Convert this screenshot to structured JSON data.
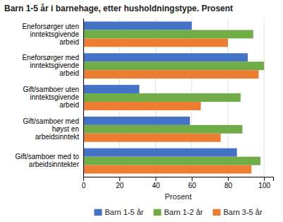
{
  "chart_data": {
    "type": "bar",
    "orientation": "horizontal",
    "title": "Barn 1-5 år i barnehage, etter husholdningstype. Prosent",
    "categories": [
      "Eneforsørger uten\ninntektsgivende\narbeid",
      "Eneforsørger med\ninntektsgivende\narbeid",
      "Gift/samboer uten\ninntektsgivende\narbeid",
      "Gift/samboer med\nhøyst en\narbeidsinntekt",
      "Gift/samboer med to\narbeidsinntekter"
    ],
    "series": [
      {
        "name": "Barn 1-5 år",
        "color": "#4472C4",
        "values": [
          60,
          91,
          31,
          59,
          85
        ]
      },
      {
        "name": "Barn 1-2 år",
        "color": "#70AD47",
        "values": [
          94,
          100,
          87,
          88,
          98
        ]
      },
      {
        "name": "Barn 3-5 år",
        "color": "#ED7D31",
        "values": [
          80,
          97,
          65,
          76,
          93
        ]
      }
    ],
    "xlabel": "Prosent",
    "xlim": [
      0,
      105
    ],
    "xticks": [
      0,
      20,
      40,
      60,
      80,
      100
    ],
    "grid": true,
    "legend": "bottom"
  }
}
